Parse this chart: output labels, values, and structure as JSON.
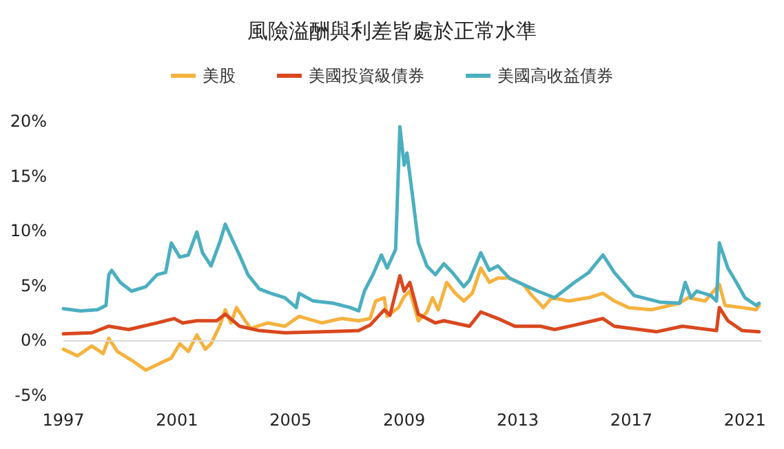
{
  "chart_data": {
    "type": "line",
    "title": "風險溢酬與利差皆處於正常水準",
    "xlim": [
      1997,
      2021.6
    ],
    "xticks": [
      1997,
      2001,
      2005,
      2009,
      2013,
      2017,
      2021
    ],
    "ylim": [
      -5,
      20
    ],
    "yticks": [
      {
        "value": -5,
        "label": "-5%"
      },
      {
        "value": 0,
        "label": "0%"
      },
      {
        "value": 5,
        "label": "5%"
      },
      {
        "value": 10,
        "label": "10%"
      },
      {
        "value": 15,
        "label": "15%"
      },
      {
        "value": 20,
        "label": "20%"
      }
    ],
    "grid": false,
    "legend": "top",
    "marker": "none",
    "line_style": "solid",
    "ref_lines": [
      {
        "axis": "y",
        "value": 0,
        "color": "#d9d9d9"
      }
    ],
    "series": [
      {
        "name": "美股",
        "color": "#f5b23e",
        "x": [
          1997.0,
          1997.5,
          1998.0,
          1998.4,
          1998.6,
          1998.9,
          1999.4,
          1999.9,
          2000.3,
          2000.8,
          2001.1,
          2001.4,
          2001.7,
          2002.0,
          2002.2,
          2002.5,
          2002.7,
          2002.9,
          2003.1,
          2003.4,
          2003.6,
          2004.2,
          2004.8,
          2005.3,
          2006.1,
          2006.8,
          2007.4,
          2007.8,
          2008.0,
          2008.3,
          2008.4,
          2008.8,
          2009.0,
          2009.2,
          2009.5,
          2009.8,
          2010.0,
          2010.2,
          2010.5,
          2010.8,
          2011.1,
          2011.4,
          2011.7,
          2012.0,
          2012.3,
          2012.7,
          2013.2,
          2013.5,
          2013.9,
          2014.2,
          2014.8,
          2015.5,
          2016.0,
          2016.4,
          2016.9,
          2017.7,
          2018.7,
          2019.0,
          2019.6,
          2020.1,
          2020.3,
          2020.9,
          2021.4,
          2021.5
        ],
        "values": [
          -0.8,
          -1.4,
          -0.5,
          -1.2,
          0.2,
          -1.0,
          -1.8,
          -2.7,
          -2.2,
          -1.6,
          -0.3,
          -1.0,
          0.5,
          -0.8,
          -0.3,
          1.3,
          2.8,
          1.6,
          3.0,
          1.8,
          1.1,
          1.6,
          1.3,
          2.2,
          1.6,
          2.0,
          1.8,
          2.0,
          3.6,
          3.9,
          2.2,
          3.0,
          4.0,
          4.5,
          1.8,
          2.6,
          3.9,
          2.8,
          5.3,
          4.3,
          3.6,
          4.3,
          6.6,
          5.3,
          5.7,
          5.7,
          5.1,
          4.1,
          3.0,
          3.9,
          3.6,
          3.9,
          4.3,
          3.6,
          3.0,
          2.8,
          3.4,
          3.9,
          3.6,
          5.1,
          3.2,
          3.0,
          2.8,
          3.2
        ]
      },
      {
        "name": "美國投資級債券",
        "color": "#d9481e",
        "x": [
          1997.0,
          1998.0,
          1998.6,
          1999.3,
          2000.3,
          2000.9,
          2001.2,
          2001.7,
          2002.4,
          2002.7,
          2003.2,
          2003.9,
          2004.8,
          2006.1,
          2007.4,
          2007.8,
          2008.3,
          2008.5,
          2008.85,
          2009.0,
          2009.2,
          2009.5,
          2010.1,
          2010.4,
          2011.3,
          2011.7,
          2012.3,
          2012.9,
          2013.8,
          2014.3,
          2015.0,
          2016.0,
          2016.4,
          2017.9,
          2018.8,
          2020.0,
          2020.1,
          2020.4,
          2020.9,
          2021.5
        ],
        "values": [
          0.6,
          0.7,
          1.3,
          1.0,
          1.6,
          2.0,
          1.6,
          1.8,
          1.8,
          2.4,
          1.3,
          0.9,
          0.7,
          0.8,
          0.9,
          1.4,
          2.8,
          2.3,
          5.9,
          4.5,
          5.3,
          2.4,
          1.6,
          1.8,
          1.3,
          2.6,
          2.0,
          1.3,
          1.3,
          1.0,
          1.4,
          2.0,
          1.3,
          0.8,
          1.3,
          0.9,
          3.0,
          1.8,
          0.9,
          0.8
        ]
      },
      {
        "name": "美國高收益債券",
        "color": "#4bafc0",
        "x": [
          1997.0,
          1997.6,
          1998.2,
          1998.5,
          1998.6,
          1998.7,
          1999.0,
          1999.4,
          1999.9,
          2000.3,
          2000.6,
          2000.8,
          2001.1,
          2001.4,
          2001.7,
          2001.9,
          2002.2,
          2002.5,
          2002.7,
          2003.0,
          2003.2,
          2003.5,
          2003.9,
          2004.3,
          2004.8,
          2005.2,
          2005.3,
          2005.8,
          2006.5,
          2007.1,
          2007.4,
          2007.6,
          2007.9,
          2008.2,
          2008.4,
          2008.7,
          2008.85,
          2009.0,
          2009.1,
          2009.3,
          2009.5,
          2009.8,
          2010.1,
          2010.4,
          2010.7,
          2011.1,
          2011.3,
          2011.7,
          2012.0,
          2012.3,
          2012.7,
          2013.2,
          2013.7,
          2014.3,
          2015.0,
          2015.5,
          2016.0,
          2016.4,
          2017.1,
          2018.0,
          2018.7,
          2018.9,
          2019.1,
          2019.3,
          2019.8,
          2020.0,
          2020.1,
          2020.4,
          2020.7,
          2021.0,
          2021.4,
          2021.5
        ],
        "values": [
          2.9,
          2.7,
          2.8,
          3.2,
          6.0,
          6.4,
          5.3,
          4.5,
          4.9,
          6.0,
          6.2,
          8.9,
          7.6,
          7.8,
          9.9,
          8.0,
          6.8,
          8.9,
          10.6,
          8.9,
          7.8,
          6.0,
          4.7,
          4.3,
          3.9,
          3.0,
          4.3,
          3.6,
          3.4,
          3.0,
          2.7,
          4.5,
          6.0,
          7.8,
          6.6,
          8.3,
          19.5,
          16.0,
          17.1,
          13.1,
          8.9,
          6.8,
          6.0,
          7.0,
          6.2,
          4.9,
          5.5,
          8.0,
          6.4,
          6.8,
          5.7,
          5.1,
          4.5,
          3.9,
          5.3,
          6.2,
          7.8,
          6.2,
          4.1,
          3.5,
          3.4,
          5.3,
          3.9,
          4.5,
          4.1,
          3.6,
          8.9,
          6.6,
          5.3,
          3.9,
          3.2,
          3.4
        ]
      }
    ]
  }
}
